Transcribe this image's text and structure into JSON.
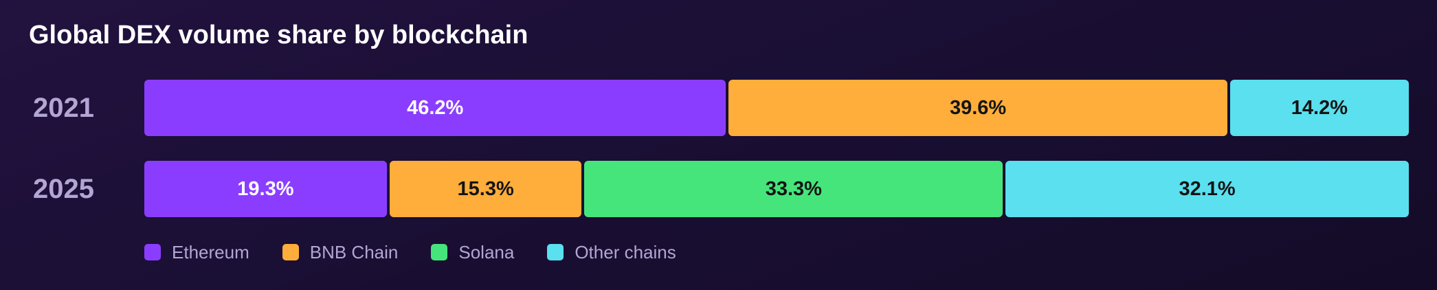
{
  "chart_data": {
    "type": "bar",
    "orientation": "horizontal",
    "stacked": true,
    "normalized": true,
    "title": "Global DEX volume share by blockchain",
    "xlabel": "",
    "ylabel": "",
    "xlim": [
      0,
      100
    ],
    "categories": [
      "2021",
      "2025"
    ],
    "series": [
      {
        "name": "Ethereum",
        "color": "#8b3dff",
        "text_color": "#ffffff",
        "values": [
          46.2,
          19.3
        ],
        "labels": [
          "46.2%",
          "19.3%"
        ]
      },
      {
        "name": "BNB Chain",
        "color": "#ffad3b",
        "text_color": "#141414",
        "values": [
          39.6,
          15.3
        ],
        "labels": [
          "39.6%",
          "15.3%"
        ]
      },
      {
        "name": "Solana",
        "color": "#45e57c",
        "text_color": "#141414",
        "values": [
          0,
          33.3
        ],
        "labels": [
          "",
          "33.3%"
        ]
      },
      {
        "name": "Other chains",
        "color": "#5ae0ee",
        "text_color": "#141414",
        "values": [
          14.2,
          32.1
        ],
        "labels": [
          "14.2%",
          "32.1%"
        ]
      }
    ],
    "legend_position": "bottom-left",
    "grid": false
  }
}
